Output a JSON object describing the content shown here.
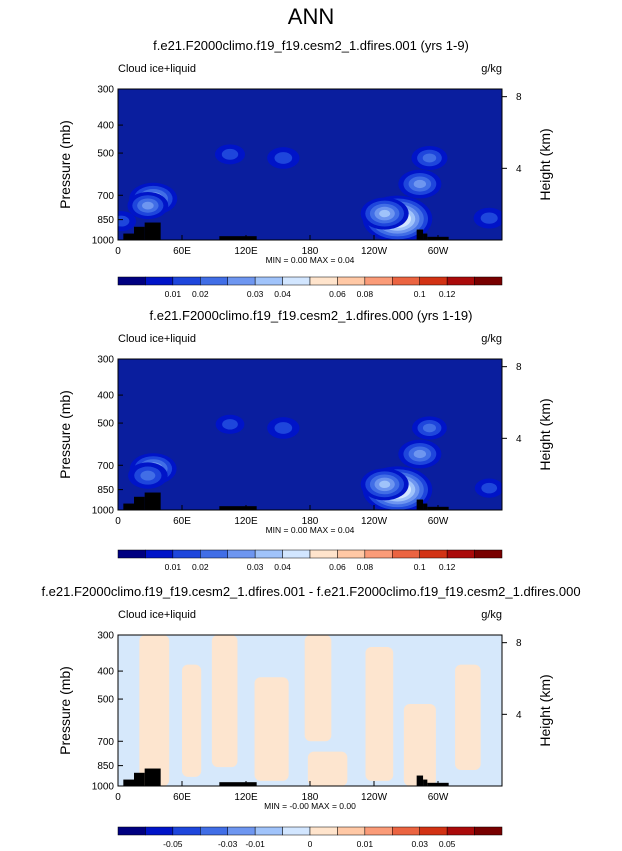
{
  "page_title": "ANN",
  "colors": {
    "cmap_diverging": [
      "#000080",
      "#0014c8",
      "#1e46dc",
      "#416ee6",
      "#6e96f0",
      "#a0c3fa",
      "#d2e6ff",
      "#ffe4cc",
      "#ffc8a5",
      "#fa9b78",
      "#eb6441",
      "#d23214",
      "#aa0a0a",
      "#780000"
    ],
    "field_background": "#0a1e9e",
    "diff_negative": "#d6e8fb",
    "diff_positive": "#fde5cf",
    "terrain": "#000000"
  },
  "chart_data": [
    {
      "type": "heatmap",
      "title": "f.e21.F2000climo.f19_f19.cesm2_1.dfires.001 (yrs 1-9)",
      "left_label": "Cloud ice+liquid",
      "right_label": "g/kg",
      "ylabel": "Pressure (mb)",
      "ylabel_right": "Height (km)",
      "x_ticks": [
        "0",
        "60E",
        "120E",
        "180",
        "120W",
        "60W"
      ],
      "x_tick_values": [
        0,
        60,
        120,
        180,
        240,
        300
      ],
      "xlim": [
        0,
        360
      ],
      "y_ticks": [
        300,
        400,
        500,
        700,
        850,
        1000
      ],
      "ylim": [
        1000,
        300
      ],
      "log_pressure": true,
      "height_ticks": [
        4,
        8
      ],
      "stats": "MIN =   0.00   MAX =   0.04",
      "colorbar_labels": [
        "0.01",
        "0.02",
        "0.03",
        "0.04",
        "0.06",
        "0.08",
        "0.1",
        "0.12"
      ],
      "features": [
        {
          "lon": 33,
          "p": 720,
          "peak": 0.022
        },
        {
          "lon": 28,
          "p": 760,
          "peak": 0.016
        },
        {
          "lon": 105,
          "p": 505,
          "peak": 0.007
        },
        {
          "lon": 155,
          "p": 520,
          "peak": 0.009
        },
        {
          "lon": 262,
          "p": 845,
          "peak": 0.04
        },
        {
          "lon": 250,
          "p": 810,
          "peak": 0.022
        },
        {
          "lon": 283,
          "p": 640,
          "peak": 0.018
        },
        {
          "lon": 292,
          "p": 520,
          "peak": 0.012
        },
        {
          "lon": 348,
          "p": 840,
          "peak": 0.008
        },
        {
          "lon": 3,
          "p": 860,
          "peak": 0.007
        }
      ]
    },
    {
      "type": "heatmap",
      "title": "f.e21.F2000climo.f19_f19.cesm2_1.dfires.000 (yrs 1-19)",
      "left_label": "Cloud ice+liquid",
      "right_label": "g/kg",
      "ylabel": "Pressure (mb)",
      "ylabel_right": "Height (km)",
      "x_ticks": [
        "0",
        "60E",
        "120E",
        "180",
        "120W",
        "60W"
      ],
      "x_tick_values": [
        0,
        60,
        120,
        180,
        240,
        300
      ],
      "xlim": [
        0,
        360
      ],
      "y_ticks": [
        300,
        400,
        500,
        700,
        850,
        1000
      ],
      "ylim": [
        1000,
        300
      ],
      "log_pressure": true,
      "height_ticks": [
        4,
        8
      ],
      "stats": "MIN =   0.00   MAX =   0.04",
      "colorbar_labels": [
        "0.01",
        "0.02",
        "0.03",
        "0.04",
        "0.06",
        "0.08",
        "0.1",
        "0.12"
      ],
      "features": [
        {
          "lon": 33,
          "p": 720,
          "peak": 0.021
        },
        {
          "lon": 28,
          "p": 760,
          "peak": 0.015
        },
        {
          "lon": 105,
          "p": 505,
          "peak": 0.006
        },
        {
          "lon": 155,
          "p": 520,
          "peak": 0.009
        },
        {
          "lon": 262,
          "p": 850,
          "peak": 0.04
        },
        {
          "lon": 250,
          "p": 815,
          "peak": 0.022
        },
        {
          "lon": 283,
          "p": 640,
          "peak": 0.018
        },
        {
          "lon": 292,
          "p": 520,
          "peak": 0.011
        },
        {
          "lon": 348,
          "p": 840,
          "peak": 0.006
        }
      ]
    },
    {
      "type": "heatmap",
      "title": "f.e21.F2000climo.f19_f19.cesm2_1.dfires.001 - f.e21.F2000climo.f19_f19.cesm2_1.dfires.000",
      "left_label": "Cloud ice+liquid",
      "right_label": "g/kg",
      "ylabel": "Pressure (mb)",
      "ylabel_right": "Height (km)",
      "x_ticks": [
        "0",
        "60E",
        "120E",
        "180",
        "120W",
        "60W"
      ],
      "x_tick_values": [
        0,
        60,
        120,
        180,
        240,
        300
      ],
      "xlim": [
        0,
        360
      ],
      "y_ticks": [
        300,
        400,
        500,
        700,
        850,
        1000
      ],
      "ylim": [
        1000,
        300
      ],
      "log_pressure": true,
      "height_ticks": [
        4,
        8
      ],
      "stats": "MIN =  -0.00   MAX =   0.00",
      "colorbar_labels": [
        "-0.05",
        "-0.03",
        "-0.01",
        "0",
        "0.01",
        "0.03",
        "0.05"
      ],
      "positive_regions": [
        {
          "lon_from": 20,
          "lon_to": 48,
          "p_from": 300,
          "p_to": 1000
        },
        {
          "lon_from": 60,
          "lon_to": 78,
          "p_from": 380,
          "p_to": 930
        },
        {
          "lon_from": 88,
          "lon_to": 112,
          "p_from": 300,
          "p_to": 860
        },
        {
          "lon_from": 128,
          "lon_to": 160,
          "p_from": 420,
          "p_to": 960
        },
        {
          "lon_from": 175,
          "lon_to": 200,
          "p_from": 300,
          "p_to": 700
        },
        {
          "lon_from": 178,
          "lon_to": 215,
          "p_from": 760,
          "p_to": 1000
        },
        {
          "lon_from": 232,
          "lon_to": 258,
          "p_from": 330,
          "p_to": 960
        },
        {
          "lon_from": 268,
          "lon_to": 298,
          "p_from": 520,
          "p_to": 1000
        },
        {
          "lon_from": 316,
          "lon_to": 340,
          "p_from": 380,
          "p_to": 880
        }
      ]
    }
  ],
  "terrain": [
    {
      "lon_from": 5,
      "lon_to": 15,
      "p": 950
    },
    {
      "lon_from": 15,
      "lon_to": 25,
      "p": 900
    },
    {
      "lon_from": 25,
      "lon_to": 40,
      "p": 870
    },
    {
      "lon_from": 95,
      "lon_to": 130,
      "p": 970
    },
    {
      "lon_from": 280,
      "lon_to": 286,
      "p": 920
    },
    {
      "lon_from": 286,
      "lon_to": 290,
      "p": 950
    },
    {
      "lon_from": 290,
      "lon_to": 310,
      "p": 975
    }
  ]
}
